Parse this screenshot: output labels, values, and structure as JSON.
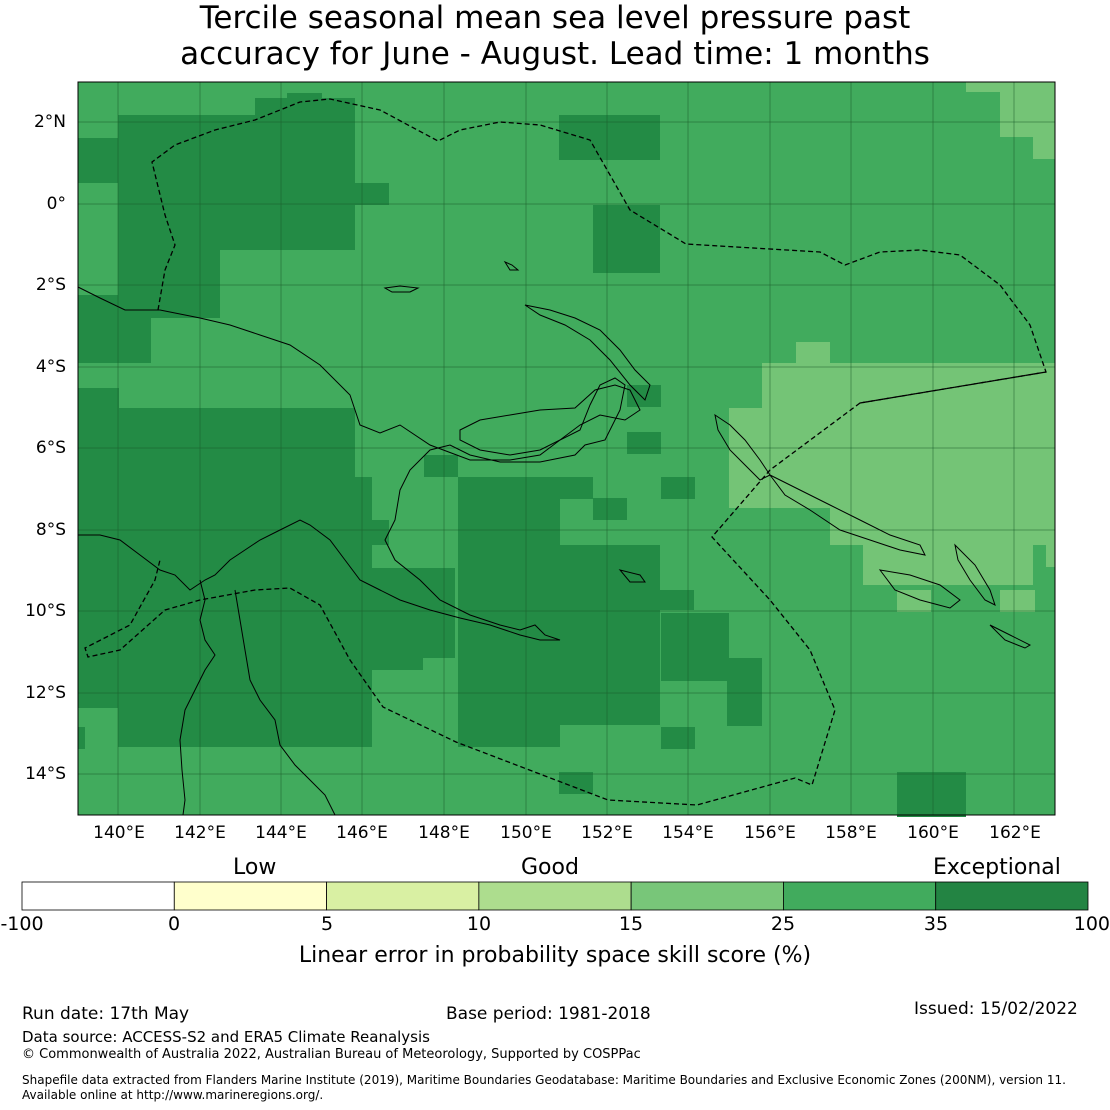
{
  "title_line1": "Tercile seasonal mean sea level pressure past",
  "title_line2": "accuracy for June - August. Lead time: 1 months",
  "map": {
    "lon_labels": [
      "140°E",
      "142°E",
      "144°E",
      "146°E",
      "148°E",
      "150°E",
      "152°E",
      "154°E",
      "156°E",
      "158°E",
      "160°E",
      "162°E"
    ],
    "lat_labels": [
      "2°N",
      "0°",
      "2°S",
      "4°S",
      "6°S",
      "8°S",
      "10°S",
      "12°S",
      "14°S"
    ],
    "lon_range": [
      139,
      163
    ],
    "lat_range": [
      -15,
      3
    ],
    "grid_resolution_deg": 0.833,
    "dominant_category": "25–35",
    "colors": {
      "c15_25": "#74c476",
      "c25_35": "#41ab5d",
      "c35_100": "#238b45"
    }
  },
  "colorbar": {
    "category_labels": [
      "Low",
      "Good",
      "Exceptional"
    ],
    "ticks": [
      "-100",
      "0",
      "5",
      "10",
      "15",
      "25",
      "35",
      "100"
    ],
    "colors": [
      "#ffffff",
      "#ffffcc",
      "#d9f0a3",
      "#addd8e",
      "#78c679",
      "#41ab5d",
      "#238443"
    ],
    "title": "Linear error in probability space skill score (%)"
  },
  "footer": {
    "run_date": "Run date: 17th May",
    "base_period": "Base period: 1981-2018",
    "issued": "Issued: 15/02/2022",
    "data_source": "Data source: ACCESS-S2 and ERA5 Climate Reanalysis",
    "copyright": "© Commonwealth of Australia 2022, Australian Bureau of Meteorology, Supported by COSPPac",
    "shapefile_line1": "Shapefile data extracted from Flanders Marine Institute (2019), Maritime Boundaries Geodatabase: Maritime Boundaries and Exclusive Economic Zones (200NM), version 11.",
    "shapefile_line2": "Available online at http://www.marineregions.org/."
  }
}
